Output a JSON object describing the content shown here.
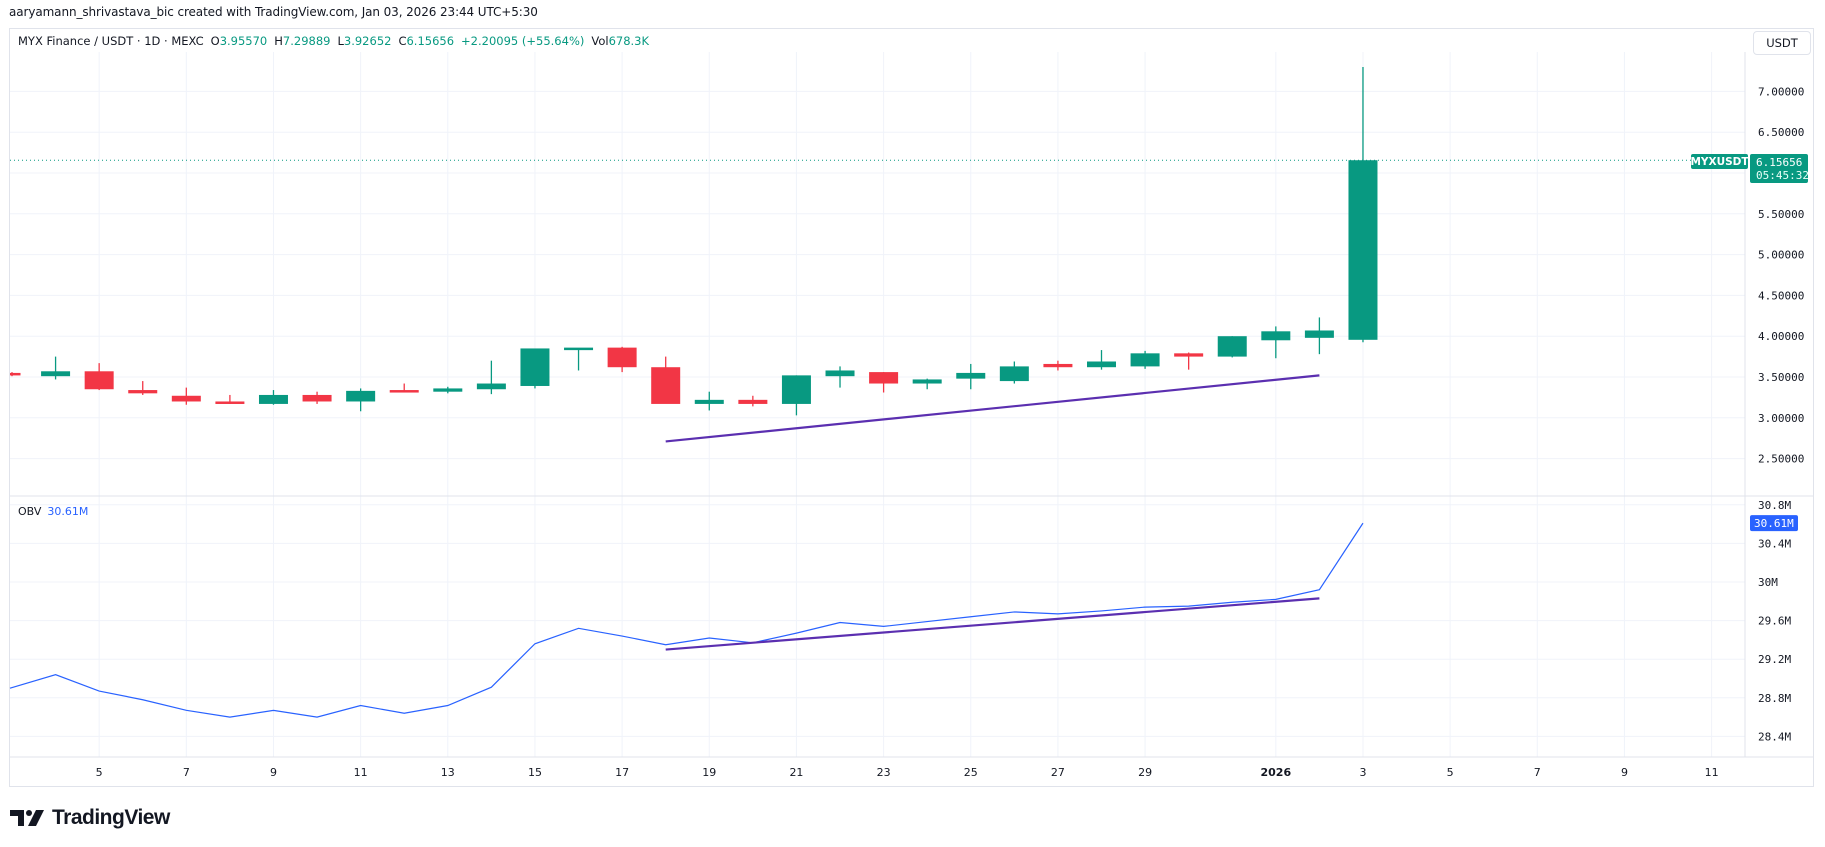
{
  "attribution": "aaryamann_shrivastava_bic created with TradingView.com, Jan 03, 2026 23:44 UTC+5:30",
  "legend": {
    "symbol": "MYX Finance / USDT · 1D · MEXC",
    "open_label": "O",
    "open": "3.95570",
    "high_label": "H",
    "high": "7.29889",
    "low_label": "L",
    "low": "3.92652",
    "close_label": "C",
    "close": "6.15656",
    "change": "+2.20095 (+55.64%)",
    "vol_label": "Vol",
    "vol": "678.3K"
  },
  "currency_button": "USDT",
  "price_tag": {
    "symbol": "MYXUSDT",
    "price": "6.15656",
    "countdown": "05:45:32"
  },
  "obv_legend": {
    "name": "OBV",
    "value": "30.61M"
  },
  "obv_tag": "30.61M",
  "brand": "TradingView",
  "colors": {
    "up": "#089981",
    "down": "#f23645",
    "obv": "#2962ff",
    "trendline": "#5b2fb0",
    "grid": "#f0f3fa"
  },
  "chart_data": [
    {
      "type": "candlestick",
      "title": "MYX Finance / USDT · 1D · MEXC",
      "ylabel": "USDT",
      "ylim": [
        2.05,
        7.6
      ],
      "y_ticks": [
        "7.00000",
        "6.50000",
        "5.50000",
        "5.00000",
        "4.50000",
        "4.00000",
        "3.50000",
        "3.00000",
        "2.50000"
      ],
      "x_ticks": [
        "5",
        "7",
        "9",
        "11",
        "13",
        "15",
        "17",
        "19",
        "21",
        "23",
        "25",
        "27",
        "29",
        "2026",
        "3",
        "5",
        "7",
        "9",
        "11"
      ],
      "candles": [
        {
          "date": "Dec 03",
          "o": 3.55,
          "h": 3.56,
          "l": 3.51,
          "c": 3.52
        },
        {
          "date": "Dec 04",
          "o": 3.51,
          "h": 3.75,
          "l": 3.47,
          "c": 3.57
        },
        {
          "date": "Dec 05",
          "o": 3.57,
          "h": 3.67,
          "l": 3.34,
          "c": 3.35
        },
        {
          "date": "Dec 06",
          "o": 3.34,
          "h": 3.45,
          "l": 3.28,
          "c": 3.3
        },
        {
          "date": "Dec 07",
          "o": 3.27,
          "h": 3.37,
          "l": 3.16,
          "c": 3.2
        },
        {
          "date": "Dec 08",
          "o": 3.2,
          "h": 3.28,
          "l": 3.17,
          "c": 3.19
        },
        {
          "date": "Dec 09",
          "o": 3.17,
          "h": 3.34,
          "l": 3.16,
          "c": 3.28
        },
        {
          "date": "Dec 10",
          "o": 3.28,
          "h": 3.32,
          "l": 3.17,
          "c": 3.2
        },
        {
          "date": "Dec 11",
          "o": 3.2,
          "h": 3.36,
          "l": 3.08,
          "c": 3.33
        },
        {
          "date": "Dec 12",
          "o": 3.34,
          "h": 3.42,
          "l": 3.32,
          "c": 3.31
        },
        {
          "date": "Dec 13",
          "o": 3.32,
          "h": 3.38,
          "l": 3.3,
          "c": 3.36
        },
        {
          "date": "Dec 14",
          "o": 3.35,
          "h": 3.7,
          "l": 3.29,
          "c": 3.42
        },
        {
          "date": "Dec 15",
          "o": 3.39,
          "h": 3.84,
          "l": 3.36,
          "c": 3.85
        },
        {
          "date": "Dec 16",
          "o": 3.85,
          "h": 3.84,
          "l": 3.58,
          "c": 3.86
        },
        {
          "date": "Dec 17",
          "o": 3.86,
          "h": 3.87,
          "l": 3.56,
          "c": 3.62
        },
        {
          "date": "Dec 18",
          "o": 3.62,
          "h": 3.75,
          "l": 3.2,
          "c": 3.17
        },
        {
          "date": "Dec 19",
          "o": 3.17,
          "h": 3.32,
          "l": 3.09,
          "c": 3.22
        },
        {
          "date": "Dec 20",
          "o": 3.22,
          "h": 3.27,
          "l": 3.14,
          "c": 3.17
        },
        {
          "date": "Dec 21",
          "o": 3.17,
          "h": 3.52,
          "l": 3.03,
          "c": 3.52
        },
        {
          "date": "Dec 22",
          "o": 3.51,
          "h": 3.63,
          "l": 3.37,
          "c": 3.58
        },
        {
          "date": "Dec 23",
          "o": 3.56,
          "h": 3.56,
          "l": 3.31,
          "c": 3.42
        },
        {
          "date": "Dec 24",
          "o": 3.42,
          "h": 3.48,
          "l": 3.35,
          "c": 3.47
        },
        {
          "date": "Dec 25",
          "o": 3.48,
          "h": 3.66,
          "l": 3.35,
          "c": 3.55
        },
        {
          "date": "Dec 26",
          "o": 3.45,
          "h": 3.69,
          "l": 3.42,
          "c": 3.63
        },
        {
          "date": "Dec 27",
          "o": 3.66,
          "h": 3.7,
          "l": 3.58,
          "c": 3.62
        },
        {
          "date": "Dec 28",
          "o": 3.62,
          "h": 3.83,
          "l": 3.59,
          "c": 3.69
        },
        {
          "date": "Dec 29",
          "o": 3.63,
          "h": 3.82,
          "l": 3.6,
          "c": 3.79
        },
        {
          "date": "Dec 30",
          "o": 3.79,
          "h": 3.8,
          "l": 3.59,
          "c": 3.75
        },
        {
          "date": "Dec 31",
          "o": 3.75,
          "h": 4.0,
          "l": 3.74,
          "c": 4.0
        },
        {
          "date": "Jan 01",
          "o": 3.95,
          "h": 4.12,
          "l": 3.73,
          "c": 4.06
        },
        {
          "date": "Jan 02",
          "o": 3.98,
          "h": 4.23,
          "l": 3.78,
          "c": 4.07
        },
        {
          "date": "Jan 03",
          "o": 3.9557,
          "h": 7.29889,
          "l": 3.92652,
          "c": 6.15656
        }
      ],
      "annotations": [
        {
          "type": "trendline",
          "from": {
            "date": "Dec 18",
            "price": 2.71
          },
          "to": {
            "date": "Jan 02",
            "price": 3.52
          }
        }
      ],
      "last_price_line": 6.15656
    },
    {
      "type": "line",
      "title": "OBV",
      "ylabel": "",
      "ylim": [
        28.1,
        30.95
      ],
      "y_ticks": [
        "30.8M",
        "30.4M",
        "30M",
        "29.6M",
        "29.2M",
        "28.8M",
        "28.4M"
      ],
      "series": [
        {
          "name": "OBV",
          "values": [
            28.9,
            29.04,
            28.87,
            28.78,
            28.67,
            28.6,
            28.67,
            28.6,
            28.72,
            28.64,
            28.72,
            28.91,
            29.36,
            29.52,
            29.44,
            29.35,
            29.42,
            29.37,
            29.47,
            29.58,
            29.54,
            29.59,
            29.64,
            29.69,
            29.67,
            29.7,
            29.74,
            29.75,
            29.79,
            29.82,
            29.92,
            30.61
          ]
        }
      ],
      "annotations": [
        {
          "type": "trendline",
          "from": {
            "date": "Dec 18",
            "value": 29.3
          },
          "to": {
            "date": "Jan 02",
            "value": 29.83
          }
        }
      ]
    }
  ]
}
